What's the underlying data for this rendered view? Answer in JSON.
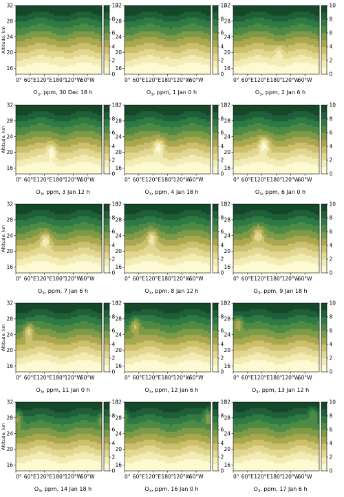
{
  "colors": {
    "levels": [
      "#fdf9d2",
      "#f1ebb4",
      "#e2d690",
      "#ccc06d",
      "#a9a74f",
      "#7d9a47",
      "#4e8a45",
      "#2e7a44",
      "#1f5f39",
      "#154829",
      "#0b2f1c"
    ]
  },
  "chart_data": {
    "type": "heatmap",
    "field": "O3, ppm",
    "ylabel": "Altitude, km",
    "xticks": [
      "0°",
      "60°E",
      "120°E",
      "180°",
      "120°W",
      "60°W"
    ],
    "yticks": [
      "16",
      "20",
      "24",
      "28",
      "32"
    ],
    "ylim": [
      14.5,
      32
    ],
    "colorbar": {
      "ticks": [
        "0",
        "2",
        "4",
        "6",
        "8",
        "10"
      ],
      "range": [
        0,
        10
      ],
      "levels": [
        0,
        1,
        2,
        3,
        4,
        5,
        6,
        7,
        8,
        9,
        10
      ]
    },
    "panels": [
      {
        "title_prefix": "O",
        "title_sub": "3",
        "title_suffix": ", ppm, 30 Dec 18 h",
        "plume_lon": 185,
        "plume_alt": 19.5,
        "plume_strength": 0.2
      },
      {
        "title_prefix": "O",
        "title_sub": "3",
        "title_suffix": ", ppm, 1 Jan 0 h",
        "plume_lon": 185,
        "plume_alt": 19.5,
        "plume_strength": 0.15
      },
      {
        "title_prefix": "O",
        "title_sub": "3",
        "title_suffix": ", ppm, 2 Jan 6 h",
        "plume_lon": 190,
        "plume_alt": 20.0,
        "plume_strength": 0.5
      },
      {
        "title_prefix": "O",
        "title_sub": "3",
        "title_suffix": ", ppm, 3 Jan 12 h",
        "plume_lon": 150,
        "plume_alt": 20.5,
        "plume_strength": 0.8
      },
      {
        "title_prefix": "O",
        "title_sub": "3",
        "title_suffix": ", ppm, 4 Jan 18 h",
        "plume_lon": 145,
        "plume_alt": 21.5,
        "plume_strength": 1.0
      },
      {
        "title_prefix": "O",
        "title_sub": "3",
        "title_suffix": ", ppm, 6 Jan 0 h",
        "plume_lon": 130,
        "plume_alt": 22.0,
        "plume_strength": 1.0
      },
      {
        "title_prefix": "O",
        "title_sub": "3",
        "title_suffix": ", ppm, 7 Jan 6 h",
        "plume_lon": 125,
        "plume_alt": 23.0,
        "plume_strength": 1.0
      },
      {
        "title_prefix": "O",
        "title_sub": "3",
        "title_suffix": ", ppm, 8 Jan 12 h",
        "plume_lon": 115,
        "plume_alt": 23.5,
        "plume_strength": 1.0
      },
      {
        "title_prefix": "O",
        "title_sub": "3",
        "title_suffix": ", ppm, 9 Jan 18 h",
        "plume_lon": 105,
        "plume_alt": 24.5,
        "plume_strength": 0.9
      },
      {
        "title_prefix": "O",
        "title_sub": "3",
        "title_suffix": ", ppm, 11 Jan 0 h",
        "plume_lon": 55,
        "plume_alt": 25.0,
        "plume_strength": 1.0
      },
      {
        "title_prefix": "O",
        "title_sub": "3",
        "title_suffix": ", ppm, 12 Jan 6 h",
        "plume_lon": 45,
        "plume_alt": 26.5,
        "plume_strength": 1.0
      },
      {
        "title_prefix": "O",
        "title_sub": "3",
        "title_suffix": ", ppm, 13 Jan 12 h",
        "plume_lon": 20,
        "plume_alt": 27.0,
        "plume_strength": 1.0
      },
      {
        "title_prefix": "O",
        "title_sub": "3",
        "title_suffix": ", ppm, 14 Jan 18 h",
        "plume_lon": 8,
        "plume_alt": 28.0,
        "plume_strength": 1.0
      },
      {
        "title_prefix": "O",
        "title_sub": "3",
        "title_suffix": ", ppm, 16 Jan 0 h",
        "plume_lon": 350,
        "plume_alt": 28.5,
        "plume_strength": 1.0
      },
      {
        "title_prefix": "O",
        "title_sub": "3",
        "title_suffix": ", ppm, 17 Jan 6 h",
        "plume_lon": 335,
        "plume_alt": 29.0,
        "plume_strength": 0.7
      }
    ]
  }
}
